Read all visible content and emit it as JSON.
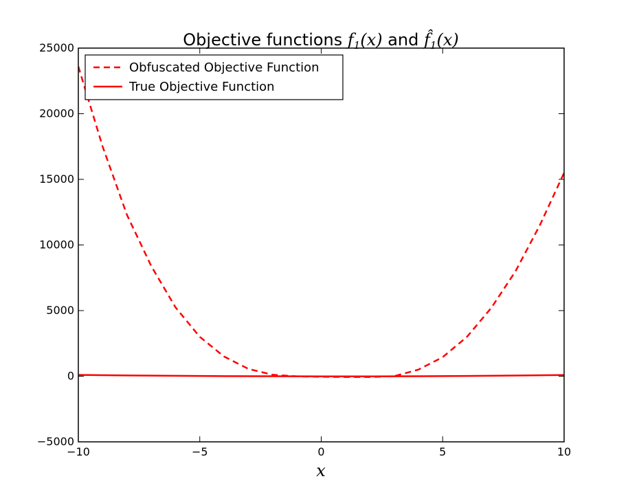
{
  "chart_data": {
    "type": "line",
    "title": {
      "prefix": "Objective functions ",
      "math1": "f",
      "math1_sub": "1",
      "math1_arg": "(x)",
      "middle": " and ",
      "math2": "f̂",
      "math2_sub": "1",
      "math2_arg": "(x)"
    },
    "xlabel": "x",
    "ylabel": "",
    "xlim": [
      -10,
      10
    ],
    "ylim": [
      -5000,
      25000
    ],
    "xticks": [
      -10,
      -5,
      0,
      5,
      10
    ],
    "xtick_labels": [
      "−10",
      "−5",
      "0",
      "5",
      "10"
    ],
    "yticks": [
      -5000,
      0,
      5000,
      10000,
      15000,
      20000,
      25000
    ],
    "ytick_labels": [
      "−5000",
      "0",
      "5000",
      "10000",
      "15000",
      "20000",
      "25000"
    ],
    "grid": false,
    "legend_position": "top-left",
    "series": [
      {
        "name": "Obfuscated Objective Function",
        "color": "#ff0000",
        "style": "dashed",
        "x": [
          -10,
          -9,
          -8,
          -7,
          -6,
          -5,
          -4,
          -3,
          -2,
          -1,
          0,
          1,
          2,
          3,
          4,
          5,
          6,
          7,
          8,
          9,
          10
        ],
        "y": [
          23600,
          17500,
          12300,
          8400,
          5250,
          3000,
          1500,
          560,
          110,
          -10,
          -40,
          -60,
          -60,
          0,
          500,
          1450,
          3000,
          5200,
          8000,
          11500,
          15500
        ]
      },
      {
        "name": "True Objective Function",
        "color": "#ff0000",
        "style": "solid",
        "x": [
          -10,
          -8,
          -6,
          -4,
          -2,
          0,
          2,
          4,
          6,
          8,
          10
        ],
        "y": [
          100,
          62,
          30,
          8,
          -2,
          -10,
          -10,
          0,
          20,
          50,
          95
        ]
      }
    ]
  }
}
